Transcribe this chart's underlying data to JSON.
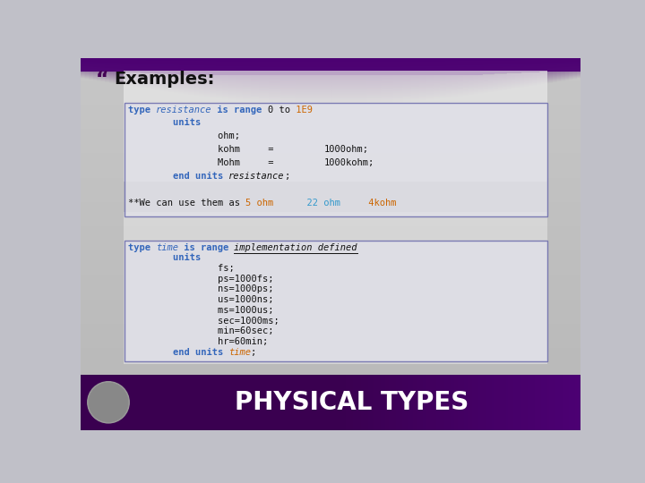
{
  "title": "Examples:",
  "title_bullet": "“",
  "footer_text": "PHYSICAL TYPES",
  "footer_text_color": "#ffffff",
  "code_blue": "#3366bb",
  "code_orange": "#cc6600",
  "code_teal": "#3399cc",
  "box1_lines": [
    [
      {
        "text": "type ",
        "color": "#3366bb",
        "bold": true,
        "italic": false
      },
      {
        "text": "resistance",
        "color": "#3366bb",
        "bold": false,
        "italic": true
      },
      {
        "text": " is range ",
        "color": "#3366bb",
        "bold": true,
        "italic": false
      },
      {
        "text": "0 to",
        "color": "#111111",
        "bold": false,
        "italic": false
      },
      {
        "text": " 1E9",
        "color": "#cc6600",
        "bold": false,
        "italic": false
      }
    ],
    [
      {
        "text": "        units",
        "color": "#3366bb",
        "bold": true,
        "italic": false
      }
    ],
    [
      {
        "text": "                ohm;",
        "color": "#111111",
        "bold": false,
        "italic": false
      }
    ],
    [
      {
        "text": "                kohm",
        "color": "#111111",
        "bold": false,
        "italic": false
      },
      {
        "text": "     =         ",
        "color": "#111111",
        "bold": false,
        "italic": false
      },
      {
        "text": "1000ohm;",
        "color": "#111111",
        "bold": false,
        "italic": false
      }
    ],
    [
      {
        "text": "                Mohm",
        "color": "#111111",
        "bold": false,
        "italic": false
      },
      {
        "text": "     =         ",
        "color": "#111111",
        "bold": false,
        "italic": false
      },
      {
        "text": "1000kohm;",
        "color": "#111111",
        "bold": false,
        "italic": false
      }
    ],
    [
      {
        "text": "        end units ",
        "color": "#3366bb",
        "bold": true,
        "italic": false
      },
      {
        "text": "resistance",
        "color": "#111111",
        "bold": false,
        "italic": true
      },
      {
        "text": ";",
        "color": "#111111",
        "bold": false,
        "italic": false
      }
    ],
    [],
    [
      {
        "text": "**We can use them as ",
        "color": "#111111",
        "bold": false,
        "italic": false
      },
      {
        "text": "5 ohm",
        "color": "#cc6600",
        "bold": false,
        "italic": false
      },
      {
        "text": "      22 ohm",
        "color": "#3399cc",
        "bold": false,
        "italic": false
      },
      {
        "text": "     4kohm",
        "color": "#cc6600",
        "bold": false,
        "italic": false
      }
    ]
  ],
  "box2_lines": [
    [
      {
        "text": "type ",
        "color": "#3366bb",
        "bold": true,
        "italic": false
      },
      {
        "text": "time",
        "color": "#3366bb",
        "bold": false,
        "italic": true
      },
      {
        "text": " is range ",
        "color": "#3366bb",
        "bold": true,
        "italic": false
      },
      {
        "text": "implementation defined",
        "color": "#111111",
        "bold": false,
        "italic": true,
        "underline": true
      }
    ],
    [
      {
        "text": "        units",
        "color": "#3366bb",
        "bold": true,
        "italic": false
      }
    ],
    [
      {
        "text": "                fs;",
        "color": "#111111",
        "bold": false,
        "italic": false
      }
    ],
    [
      {
        "text": "                ps=1000fs;",
        "color": "#111111",
        "bold": false,
        "italic": false
      }
    ],
    [
      {
        "text": "                ns=1000ps;",
        "color": "#111111",
        "bold": false,
        "italic": false
      }
    ],
    [
      {
        "text": "                us=1000ns;",
        "color": "#111111",
        "bold": false,
        "italic": false
      }
    ],
    [
      {
        "text": "                ms=1000us;",
        "color": "#111111",
        "bold": false,
        "italic": false
      }
    ],
    [
      {
        "text": "                sec=1000ms;",
        "color": "#111111",
        "bold": false,
        "italic": false
      }
    ],
    [
      {
        "text": "                min=60sec;",
        "color": "#111111",
        "bold": false,
        "italic": false
      }
    ],
    [
      {
        "text": "                hr=60min;",
        "color": "#111111",
        "bold": false,
        "italic": false
      }
    ],
    [
      {
        "text": "        end units ",
        "color": "#3366bb",
        "bold": true,
        "italic": false
      },
      {
        "text": "time",
        "color": "#cc6600",
        "bold": false,
        "italic": true
      },
      {
        "text": ";",
        "color": "#111111",
        "bold": false,
        "italic": false
      }
    ]
  ]
}
